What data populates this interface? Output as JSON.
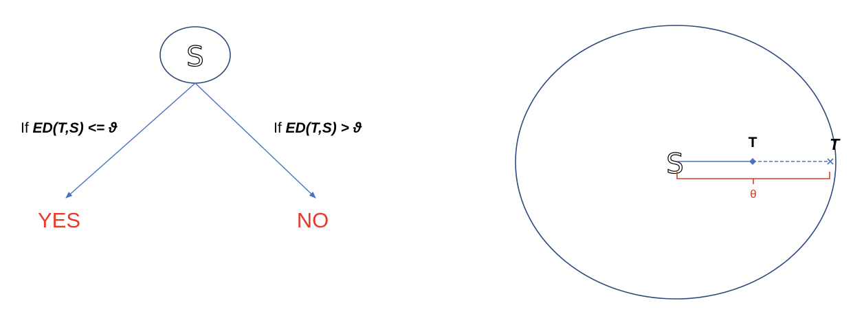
{
  "tree": {
    "root_label": "S",
    "left_condition": {
      "prefix": "If ",
      "expression": "ED(T,S) <= ϑ"
    },
    "right_condition": {
      "prefix": "If ",
      "expression": "ED(T,S) > ϑ"
    },
    "yes_label": "YES",
    "no_label": "NO"
  },
  "circle_diagram": {
    "center_label": "S",
    "inner_point_label": "T",
    "boundary_point_label": "T",
    "threshold_label": "θ"
  },
  "colors": {
    "node_stroke": "#2f4a7d",
    "arrow": "#4a72c0",
    "outcome": "#e8392b",
    "threshold": "#d93a2b",
    "text": "#000000"
  }
}
